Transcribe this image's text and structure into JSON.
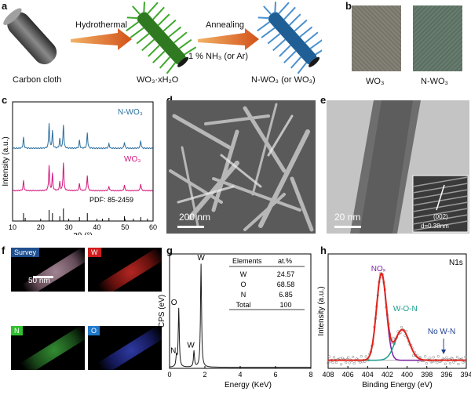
{
  "panel_labels": {
    "a": "a",
    "b": "b",
    "c": "c",
    "d": "d",
    "e": "e",
    "f": "f",
    "g": "g",
    "h": "h"
  },
  "panel_a": {
    "carbon_cloth": "Carbon cloth",
    "hydrothermal": "Hydrothermal",
    "wo3_xh2o": "WO₃·xH₂O",
    "annealing": "Annealing",
    "atmosphere": "1 % NH₃ (or Ar)",
    "product": "N-WO₃ (or WO₃)"
  },
  "panel_b": {
    "left": "WO₃",
    "right": "N-WO₃"
  },
  "panel_d": {
    "scale": "200 nm"
  },
  "panel_e": {
    "scale": "20 nm",
    "plane": "(002)",
    "spacing": "d=0.38nm"
  },
  "panel_f": {
    "survey": "Survey",
    "w": "W",
    "n": "N",
    "o": "O",
    "scale": "50 nm"
  },
  "colors": {
    "nwo3": "#2a6fa0",
    "wo3": "#d6177e",
    "nox": "#7b1fa2",
    "won": "#1a9c8c",
    "fit": "#e0241b"
  },
  "chart_data": [
    {
      "type": "line",
      "panel": "c",
      "xlabel": "2θ (°)",
      "ylabel": "Intensity (a.u.)",
      "xlim": [
        10,
        60
      ],
      "xticks": [
        "10",
        "20",
        "30",
        "40",
        "50",
        "60"
      ],
      "series": [
        {
          "name": "N-WO₃",
          "color": "#2a6fa0",
          "peaks": [
            [
              13.9,
              0.35
            ],
            [
              23.0,
              0.8
            ],
            [
              24.2,
              0.55
            ],
            [
              26.8,
              0.3
            ],
            [
              28.1,
              0.75
            ],
            [
              33.8,
              0.25
            ],
            [
              36.6,
              0.5
            ],
            [
              44.3,
              0.15
            ],
            [
              49.8,
              0.2
            ],
            [
              55.6,
              0.25
            ]
          ]
        },
        {
          "name": "WO₃",
          "color": "#d6177e",
          "peaks": [
            [
              13.9,
              0.35
            ],
            [
              23.0,
              0.9
            ],
            [
              24.2,
              0.6
            ],
            [
              26.8,
              0.3
            ],
            [
              28.1,
              1.0
            ],
            [
              33.8,
              0.25
            ],
            [
              36.6,
              0.55
            ],
            [
              44.3,
              0.15
            ],
            [
              49.8,
              0.2
            ],
            [
              55.6,
              0.25
            ]
          ]
        }
      ],
      "reference": {
        "name": "PDF: 85-2459",
        "lines": [
          13.9,
          14.5,
          23.0,
          24.2,
          26.8,
          28.1,
          33.8,
          36.6,
          42.0,
          44.3,
          49.8,
          53.0,
          55.6,
          58.0
        ]
      }
    },
    {
      "type": "line",
      "panel": "g",
      "xlabel": "Energy (KeV)",
      "ylabel": "CPS (eV)",
      "xlim": [
        0,
        8
      ],
      "xticks": [
        "0",
        "2",
        "4",
        "6",
        "8"
      ],
      "peak_labels": [
        {
          "text": "W",
          "x": 1.78
        },
        {
          "text": "O",
          "x": 0.52
        },
        {
          "text": "N",
          "x": 0.39
        },
        {
          "text": "W",
          "x": 1.38
        }
      ],
      "peaks": [
        [
          0.39,
          0.1
        ],
        [
          0.52,
          0.55
        ],
        [
          1.38,
          0.15
        ],
        [
          1.78,
          0.97
        ]
      ],
      "table": {
        "headers": [
          "Elements",
          "at.%"
        ],
        "rows": [
          [
            "W",
            "24.57"
          ],
          [
            "O",
            "68.58"
          ],
          [
            "N",
            "6.85"
          ],
          [
            "Total",
            "100"
          ]
        ]
      }
    },
    {
      "type": "line",
      "panel": "h",
      "title": "N1s",
      "xlabel": "Binding Energy (eV)",
      "ylabel": "Intensity (a.u.)",
      "xlim": [
        408,
        394
      ],
      "xticks": [
        "408",
        "406",
        "404",
        "402",
        "400",
        "398",
        "396",
        "394"
      ],
      "series": [
        {
          "name": "NOₓ",
          "center": 402.6,
          "height": 0.85,
          "width": 0.7,
          "color": "#7b1fa2"
        },
        {
          "name": "W-O-N",
          "center": 400.5,
          "height": 0.3,
          "width": 1.0,
          "color": "#1a9c8c"
        }
      ],
      "annotation": "No W-N"
    }
  ]
}
